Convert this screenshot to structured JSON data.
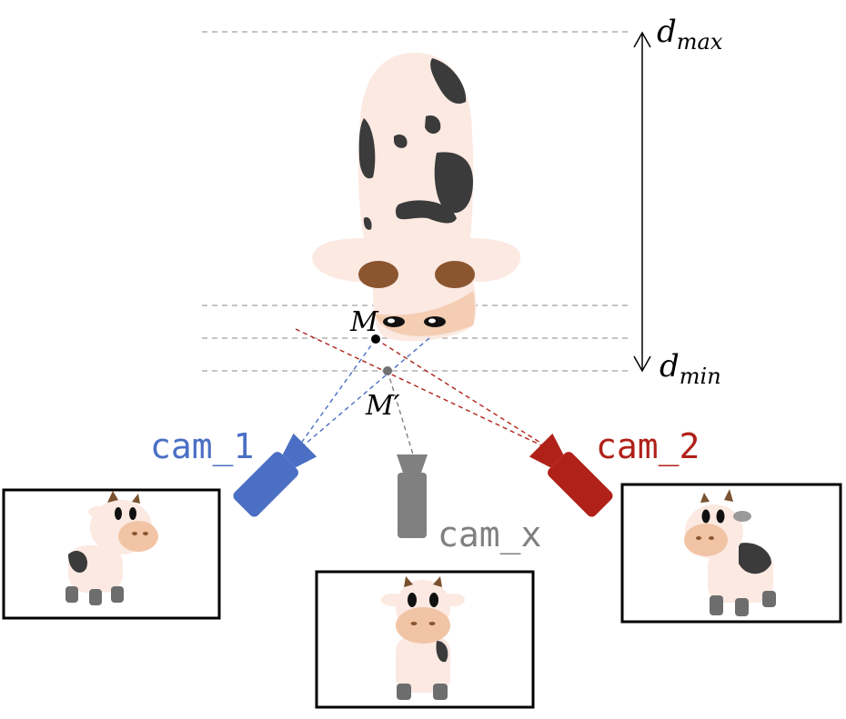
{
  "labels": {
    "d_max": {
      "base": "d",
      "sub": "max"
    },
    "d_min": {
      "base": "d",
      "sub": "min"
    },
    "point_m": "M",
    "point_m_prime": "M′"
  },
  "cameras": {
    "cam1": {
      "label": "cam_1",
      "color": "#4a6fc4"
    },
    "camx": {
      "label": "cam_x",
      "color": "#808080"
    },
    "cam2": {
      "label": "cam_2",
      "color": "#b02119"
    }
  },
  "colors": {
    "cow_body": "#fbe9e2",
    "cow_spot": "#3b3b3b",
    "cow_nose": "#f2c4a6",
    "nostril": "#8b5530",
    "plane_line": "#b0b0b0",
    "axis": "#000000"
  }
}
